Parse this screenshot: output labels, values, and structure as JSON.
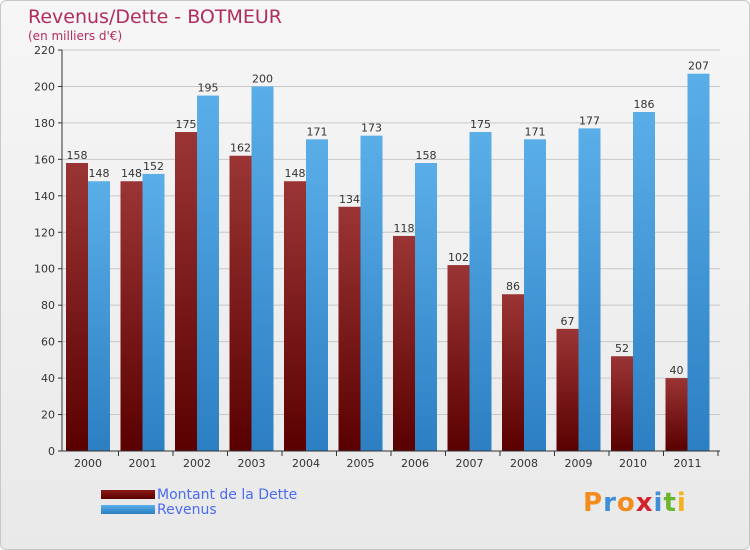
{
  "chart_data": {
    "type": "bar",
    "title": "Revenus/Dette - BOTMEUR",
    "subtitle": "(en milliers d'€)",
    "categories": [
      "2000",
      "2001",
      "2002",
      "2003",
      "2004",
      "2005",
      "2006",
      "2007",
      "2008",
      "2009",
      "2010",
      "2011"
    ],
    "series": [
      {
        "name": "Montant de la Dette",
        "color": "#8b1a1a",
        "values": [
          158,
          148,
          175,
          162,
          148,
          134,
          118,
          102,
          86,
          67,
          52,
          40
        ]
      },
      {
        "name": "Revenus",
        "color": "#3e9ee3",
        "values": [
          148,
          152,
          195,
          200,
          171,
          173,
          158,
          175,
          171,
          177,
          186,
          207
        ]
      }
    ],
    "ylim": [
      0,
      220
    ],
    "yticks": [
      0,
      20,
      40,
      60,
      80,
      100,
      120,
      140,
      160,
      180,
      200,
      220
    ],
    "grid": true,
    "legend_position": "bottom-left"
  },
  "logo": {
    "letters": [
      {
        "char": "P",
        "color": "#f28c1e"
      },
      {
        "char": "r",
        "color": "#3f8fd8"
      },
      {
        "char": "o",
        "color": "#f28c1e"
      },
      {
        "char": "x",
        "color": "#d4232d"
      },
      {
        "char": "i",
        "color": "#3f8fd8"
      },
      {
        "char": "t",
        "color": "#6cb531"
      },
      {
        "char": "i",
        "color": "#f2b41e"
      }
    ]
  }
}
